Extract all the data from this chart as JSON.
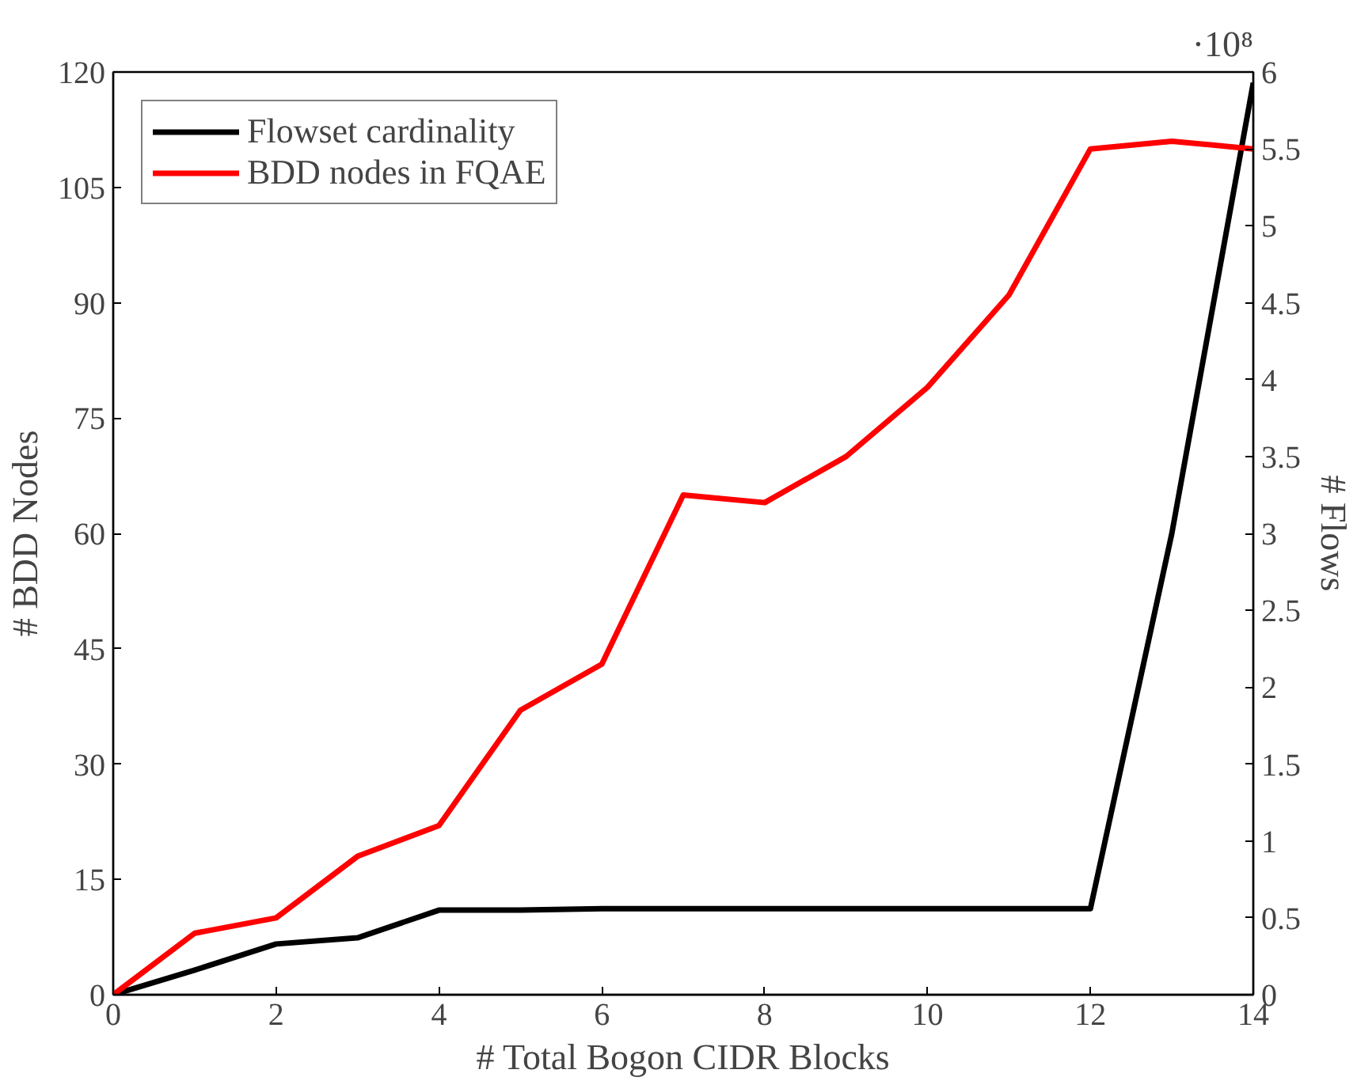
{
  "chart_data": {
    "type": "line",
    "xlabel": "# Total Bogon CIDR Blocks",
    "ylabel": "# BDD Nodes",
    "y2label": "# Flows",
    "x": [
      0,
      1,
      2,
      3,
      4,
      5,
      6,
      7,
      8,
      9,
      10,
      11,
      12,
      13,
      14
    ],
    "series": [
      {
        "name": "Flowset cardinality",
        "color": "#000000",
        "axis": "y2",
        "values": [
          0,
          0.16,
          0.33,
          0.37,
          0.55,
          0.55,
          0.56,
          0.56,
          0.56,
          0.56,
          0.56,
          0.56,
          0.56,
          3.0,
          5.93
        ]
      },
      {
        "name": "BDD nodes in FQAE",
        "color": "#ff0000",
        "values": [
          0,
          8,
          10,
          18,
          22,
          37,
          43,
          65,
          64,
          70,
          79,
          91,
          110,
          111,
          110
        ]
      }
    ],
    "xlim": [
      0,
      14
    ],
    "xticks": [
      0,
      2,
      4,
      6,
      8,
      10,
      12,
      14
    ],
    "ylim": [
      0,
      120
    ],
    "yticks": [
      0,
      15,
      30,
      45,
      60,
      75,
      90,
      105,
      120
    ],
    "y2lim": [
      0,
      6
    ],
    "y2ticks": [
      0,
      0.5,
      1,
      1.5,
      2,
      2.5,
      3,
      3.5,
      4,
      4.5,
      5,
      5.5,
      6
    ],
    "annotations": [
      "·10⁸"
    ],
    "grid": false,
    "legend": "top left"
  }
}
